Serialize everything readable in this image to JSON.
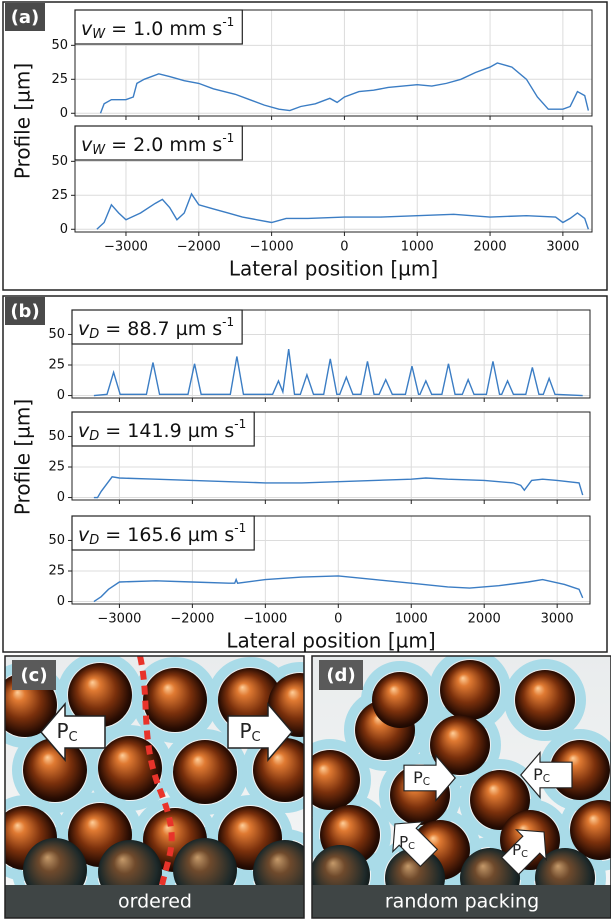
{
  "figure": {
    "panels": [
      {
        "label": "(a)",
        "ylabel": "Profile [µm]"
      },
      {
        "label": "(b)",
        "ylabel": "Profile [µm]"
      }
    ]
  },
  "chart_data": [
    {
      "type": "line",
      "title": {
        "symbol": "v",
        "subscript": "W",
        "text": " = 1.0 mm s",
        "superscript": "-1"
      },
      "x": [
        -3350,
        -3300,
        -3200,
        -3000,
        -2900,
        -2850,
        -2750,
        -2550,
        -2400,
        -2200,
        -2000,
        -1800,
        -1500,
        -1300,
        -1100,
        -900,
        -750,
        -600,
        -400,
        -200,
        -100,
        0,
        200,
        400,
        600,
        800,
        1000,
        1200,
        1400,
        1600,
        1800,
        2000,
        2100,
        2300,
        2500,
        2650,
        2800,
        3000,
        3100,
        3200,
        3300,
        3350
      ],
      "series": [
        {
          "color": "#3b7dc4",
          "values": [
            0,
            7,
            10,
            10,
            12,
            22,
            25,
            29,
            27,
            24,
            22,
            18,
            14,
            10,
            6,
            3,
            2,
            5,
            7,
            11,
            8,
            12,
            16,
            17,
            19,
            20,
            21,
            20,
            22,
            25,
            30,
            34,
            37,
            34,
            25,
            12,
            3,
            3,
            5,
            16,
            13,
            2
          ]
        }
      ],
      "xlim": [
        -3700,
        3400
      ],
      "ylim": [
        -2,
        76
      ],
      "xticks": [
        {
          "value": -3000,
          "label": "−3000"
        },
        {
          "value": -2000,
          "label": "−2000"
        },
        {
          "value": -1000,
          "label": "−1000"
        },
        0,
        1000,
        2000,
        3000
      ],
      "yticks": [
        0,
        25,
        50
      ],
      "grid": true,
      "xtick_labels": false
    },
    {
      "type": "line",
      "title": {
        "symbol": "v",
        "subscript": "W",
        "text": " = 2.0 mm s",
        "superscript": "-1"
      },
      "x": [
        -3400,
        -3300,
        -3200,
        -3100,
        -3000,
        -2800,
        -2600,
        -2500,
        -2400,
        -2300,
        -2200,
        -2100,
        -2000,
        -1800,
        -1600,
        -1400,
        -1200,
        -1000,
        -800,
        -500,
        0,
        500,
        1000,
        1500,
        2000,
        2500,
        2900,
        3000,
        3100,
        3200,
        3300,
        3350
      ],
      "series": [
        {
          "color": "#3b7dc4",
          "values": [
            0,
            5,
            18,
            12,
            7,
            12,
            19,
            22,
            16,
            7,
            12,
            26,
            18,
            15,
            12,
            9,
            7,
            5,
            8,
            8,
            9,
            9,
            10,
            11,
            9,
            10,
            9,
            5,
            8,
            12,
            8,
            0
          ]
        }
      ],
      "xlim": [
        -3700,
        3400
      ],
      "ylim": [
        -2,
        76
      ],
      "xticks": [
        {
          "value": -3000,
          "label": "−3000"
        },
        {
          "value": -2000,
          "label": "−2000"
        },
        {
          "value": -1000,
          "label": "−1000"
        },
        0,
        1000,
        2000,
        3000
      ],
      "yticks": [
        0,
        25,
        50
      ],
      "grid": true,
      "xtick_labels": true,
      "xlabel": "Lateral position [µm]"
    },
    {
      "type": "line",
      "title": {
        "symbol": "v",
        "subscript": "D",
        "text": " = 88.7 µm s",
        "superscript": "-1"
      },
      "x": [
        -3350,
        -3170,
        -3080,
        -2990,
        -2630,
        -2540,
        -2450,
        -2060,
        -1970,
        -1880,
        -1480,
        -1390,
        -1300,
        -900,
        -820,
        -760,
        -680,
        -600,
        -520,
        -430,
        -340,
        -200,
        -110,
        -20,
        20,
        110,
        200,
        310,
        400,
        490,
        560,
        650,
        740,
        920,
        1010,
        1100,
        1120,
        1200,
        1280,
        1420,
        1510,
        1600,
        1700,
        1780,
        1860,
        2030,
        2120,
        2210,
        2240,
        2320,
        2400,
        2570,
        2660,
        2750,
        2810,
        2890,
        2970,
        3350
      ],
      "series": [
        {
          "color": "#3b7dc4",
          "values": [
            0,
            1,
            19,
            1,
            1,
            27,
            1,
            1,
            26,
            1,
            1,
            32,
            1,
            1,
            12,
            3,
            38,
            1,
            1,
            17,
            1,
            1,
            30,
            1,
            1,
            15,
            1,
            1,
            28,
            1,
            1,
            13,
            1,
            1,
            24,
            1,
            1,
            12,
            1,
            1,
            26,
            1,
            1,
            13,
            1,
            1,
            28,
            1,
            1,
            12,
            1,
            1,
            23,
            1,
            1,
            14,
            1,
            0
          ]
        }
      ],
      "xlim": [
        -3650,
        3450
      ],
      "ylim": [
        -2,
        70
      ],
      "xticks": [
        {
          "value": -3000,
          "label": "−3000"
        },
        {
          "value": -2000,
          "label": "−2000"
        },
        {
          "value": -1000,
          "label": "−1000"
        },
        0,
        1000,
        2000,
        3000
      ],
      "yticks": [
        0,
        25,
        50
      ],
      "grid": true,
      "xtick_labels": false
    },
    {
      "type": "line",
      "title": {
        "symbol": "v",
        "subscript": "D",
        "text": " = 141.9 µm s",
        "superscript": "-1"
      },
      "x": [
        -3350,
        -3300,
        -3250,
        -3100,
        -3000,
        -2500,
        -2000,
        -1500,
        -1000,
        -500,
        0,
        500,
        1000,
        1200,
        1500,
        2000,
        2400,
        2500,
        2550,
        2650,
        2800,
        3000,
        3300,
        3350
      ],
      "series": [
        {
          "color": "#3b7dc4",
          "values": [
            0,
            0,
            5,
            17,
            16,
            15,
            14,
            13,
            12,
            12,
            13,
            14,
            15,
            16,
            15,
            14,
            12,
            10,
            6,
            14,
            15,
            14,
            12,
            2
          ]
        }
      ],
      "xlim": [
        -3650,
        3450
      ],
      "ylim": [
        -2,
        70
      ],
      "xticks": [
        {
          "value": -3000,
          "label": "−3000"
        },
        {
          "value": -2000,
          "label": "−2000"
        },
        {
          "value": -1000,
          "label": "−1000"
        },
        0,
        1000,
        2000,
        3000
      ],
      "yticks": [
        0,
        25,
        50
      ],
      "grid": true,
      "xtick_labels": false
    },
    {
      "type": "line",
      "title": {
        "symbol": "v",
        "subscript": "D",
        "text": " = 165.6 µm s",
        "superscript": "-1"
      },
      "x": [
        -3350,
        -3250,
        -3150,
        -3000,
        -2500,
        -2000,
        -1500,
        -1420,
        -1400,
        -1380,
        -1000,
        -500,
        0,
        500,
        1000,
        1500,
        1800,
        2200,
        2600,
        2800,
        3100,
        3300,
        3350
      ],
      "series": [
        {
          "color": "#3b7dc4",
          "values": [
            0,
            4,
            10,
            16,
            17,
            16,
            15,
            15,
            18,
            15,
            18,
            20,
            21,
            18,
            15,
            12,
            11,
            13,
            16,
            18,
            14,
            10,
            3
          ]
        }
      ],
      "xlim": [
        -3650,
        3450
      ],
      "ylim": [
        -2,
        70
      ],
      "xticks": [
        {
          "value": -3000,
          "label": "−3000"
        },
        {
          "value": -2000,
          "label": "−2000"
        },
        {
          "value": -1000,
          "label": "−1000"
        },
        0,
        1000,
        2000,
        3000
      ],
      "yticks": [
        0,
        25,
        50
      ],
      "grid": true,
      "xtick_labels": true,
      "xlabel": "Lateral position [µm]"
    }
  ],
  "illustrations": {
    "pressure_label": {
      "symbol": "P",
      "subscript": "C"
    },
    "panels": [
      {
        "label": "(c)",
        "caption": "ordered"
      },
      {
        "label": "(d)",
        "caption": "random packing"
      }
    ]
  }
}
